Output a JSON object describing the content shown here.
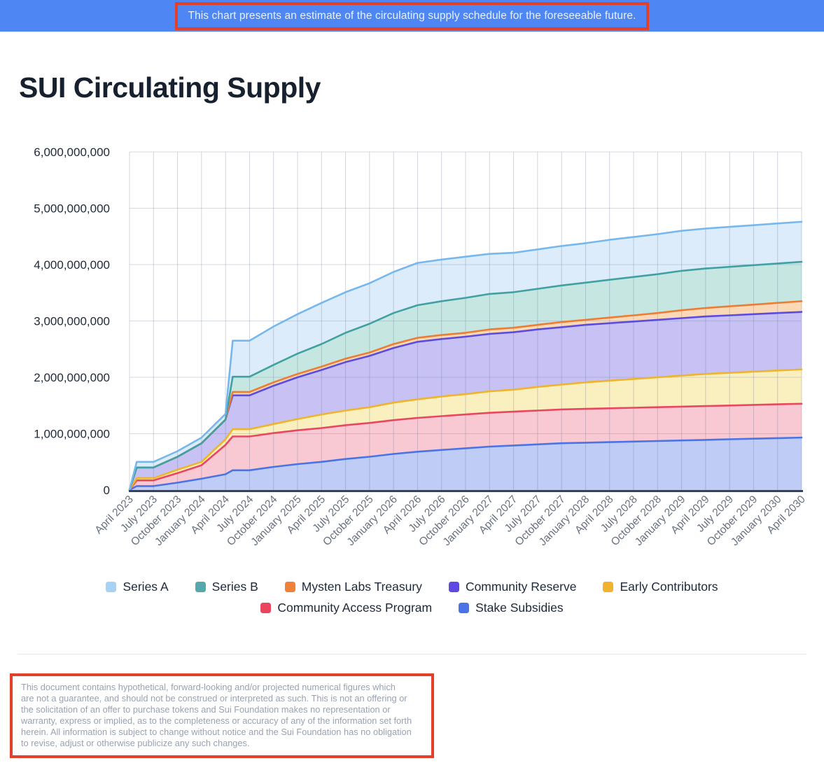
{
  "banner": {
    "text": "This chart presents an estimate of the circulating supply schedule for the foreseeable future.",
    "bg_color": "#4e87f3",
    "text_color": "#e9f0fe",
    "highlight_border_color": "#e2402a"
  },
  "title": "SUI Circulating Supply",
  "chart_data": {
    "type": "area",
    "stacked": true,
    "title": "SUI Circulating Supply",
    "grid": true,
    "legend_position": "bottom",
    "values_unit": "billions of SUI tokens",
    "ylim_tokens": [
      0,
      6000000000
    ],
    "y_tick_labels": [
      "0",
      "1,000,000,000",
      "2,000,000,000",
      "3,000,000,000",
      "4,000,000,000",
      "5,000,000,000",
      "6,000,000,000"
    ],
    "x_tick_labels": [
      "April 2023",
      "July 2023",
      "October 2023",
      "January 2024",
      "April 2024",
      "July 2024",
      "October 2024",
      "January 2025",
      "April 2025",
      "July 2025",
      "October 2025",
      "January 2026",
      "April 2026",
      "July 2026",
      "October 2026",
      "January 2027",
      "April 2027",
      "July 2027",
      "October 2027",
      "January 2028",
      "April 2028",
      "July 2028",
      "October 2028",
      "January 2029",
      "April 2029",
      "July 2029",
      "October 2029",
      "January 2030",
      "April 2030"
    ],
    "axis_color": "#37415a",
    "grid_color": "#cfd6e4",
    "series_note": "legend order top-to-bottom of stack; stacking bottom-to-top is the reverse of this array; values are estimated circulating amounts in billions read from the chart",
    "series": [
      {
        "name": "Series A",
        "stroke": "#76b7ee",
        "fill": "#dcecfa",
        "swatch": "#a5d2f5",
        "values": [
          0,
          0.1,
          0.1,
          0.1,
          0.1,
          0.64,
          0.68,
          0.7,
          0.73,
          0.72,
          0.72,
          0.73,
          0.75,
          0.74,
          0.73,
          0.71,
          0.7,
          0.7,
          0.7,
          0.7,
          0.71,
          0.71,
          0.71,
          0.71,
          0.71,
          0.71,
          0.71,
          0.71,
          0.71
        ]
      },
      {
        "name": "Series B",
        "stroke": "#41a0a1",
        "fill": "#c6e6e2",
        "swatch": "#55a9ad",
        "values": [
          0,
          0,
          0,
          0,
          0,
          0.27,
          0.31,
          0.36,
          0.4,
          0.46,
          0.51,
          0.55,
          0.58,
          0.6,
          0.62,
          0.63,
          0.63,
          0.64,
          0.65,
          0.66,
          0.67,
          0.68,
          0.69,
          0.7,
          0.7,
          0.7,
          0.7,
          0.7,
          0.7
        ]
      },
      {
        "name": "Mysten Labs Treasury",
        "stroke": "#ee7c33",
        "fill": "#fbd9b7",
        "swatch": "#ef8138",
        "values": [
          0,
          0,
          0,
          0,
          0,
          0.06,
          0.06,
          0.06,
          0.06,
          0.06,
          0.06,
          0.07,
          0.07,
          0.07,
          0.07,
          0.08,
          0.08,
          0.08,
          0.09,
          0.09,
          0.1,
          0.11,
          0.12,
          0.14,
          0.15,
          0.16,
          0.17,
          0.18,
          0.19
        ]
      },
      {
        "name": "Community Reserve",
        "stroke": "#5a4be2",
        "fill": "#c7c2f3",
        "swatch": "#6048e3",
        "values": [
          0,
          0.19,
          0.23,
          0.33,
          0.35,
          0.6,
          0.68,
          0.74,
          0.79,
          0.86,
          0.91,
          0.97,
          1.02,
          1.02,
          1.02,
          1.02,
          1.02,
          1.02,
          1.02,
          1.02,
          1.02,
          1.02,
          1.02,
          1.02,
          1.02,
          1.02,
          1.02,
          1.02,
          1.02
        ]
      },
      {
        "name": "Early Contributors",
        "stroke": "#efb42c",
        "fill": "#f9efbf",
        "swatch": "#f0b32b",
        "values": [
          0,
          0.04,
          0.06,
          0.06,
          0.1,
          0.13,
          0.16,
          0.2,
          0.24,
          0.26,
          0.28,
          0.31,
          0.33,
          0.35,
          0.36,
          0.38,
          0.39,
          0.42,
          0.44,
          0.47,
          0.49,
          0.51,
          0.53,
          0.55,
          0.57,
          0.58,
          0.59,
          0.6,
          0.61
        ]
      },
      {
        "name": "Community Access Program",
        "stroke": "#e84760",
        "fill": "#f8c9d3",
        "swatch": "#e9455e",
        "values": [
          0,
          0.1,
          0.17,
          0.24,
          0.52,
          0.6,
          0.6,
          0.6,
          0.6,
          0.6,
          0.6,
          0.6,
          0.6,
          0.6,
          0.6,
          0.6,
          0.6,
          0.6,
          0.6,
          0.6,
          0.6,
          0.6,
          0.6,
          0.6,
          0.6,
          0.6,
          0.6,
          0.6,
          0.6
        ]
      },
      {
        "name": "Stake Subsidies",
        "stroke": "#4a73e6",
        "fill": "#bfcdf6",
        "swatch": "#4a73e6",
        "values": [
          0,
          0.07,
          0.13,
          0.2,
          0.28,
          0.35,
          0.41,
          0.46,
          0.5,
          0.55,
          0.59,
          0.64,
          0.68,
          0.71,
          0.74,
          0.77,
          0.79,
          0.81,
          0.83,
          0.84,
          0.85,
          0.86,
          0.87,
          0.88,
          0.89,
          0.9,
          0.91,
          0.92,
          0.93
        ]
      }
    ]
  },
  "legend": {
    "rows": [
      [
        "Series A",
        "Series B",
        "Mysten Labs Treasury",
        "Community Reserve",
        "Early Contributors"
      ],
      [
        "Community Access Program",
        "Stake Subsidies"
      ]
    ]
  },
  "disclaimer": {
    "border_color": "#e2402a",
    "text_color": "#98a2b3",
    "lines": [
      "This document contains hypothetical, forward-looking and/or projected numerical figures which",
      "are not a guarantee, and should not be construed or interpreted as such. This is not an offering or",
      "the solicitation of an offer to purchase tokens and Sui Foundation makes no representation or",
      "warranty, express or implied, as to the completeness or accuracy of any of the information set forth",
      "herein. All information is subject to change without notice and the Sui Foundation has no obligation",
      "to revise, adjust or otherwise publicize any such changes."
    ]
  }
}
